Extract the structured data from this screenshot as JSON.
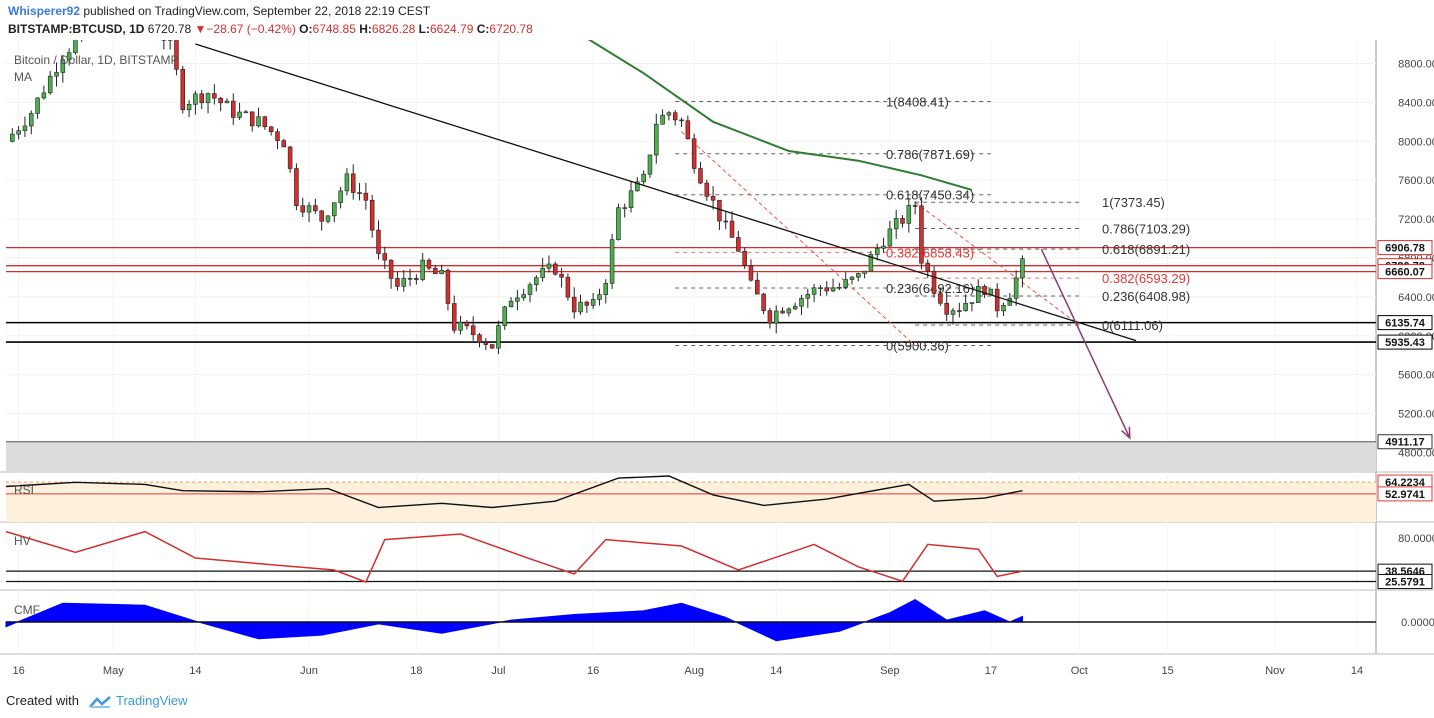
{
  "header": {
    "author": "Whisperer92",
    "published_text": "published on TradingView.com, September 22, 2018 22:19 CEST",
    "symbol": "BITSTAMP:BTCUSD, 1D",
    "last": "6720.78",
    "change": "−28.67 (−0.42%)",
    "open_label": "O:",
    "open": "6748.85",
    "high_label": "H:",
    "high": "6826.28",
    "low_label": "L:",
    "low": "6624.79",
    "close_label": "C:",
    "close": "6720.78"
  },
  "legend": {
    "title": "Bitcoin / Dollar, 1D, BITSTAMP",
    "ma": "MA",
    "rsi": "RSI",
    "hv": "HV",
    "cmf": "CMF"
  },
  "footer": {
    "created_with": "Created with",
    "brand": "TradingView"
  },
  "colors": {
    "up": "#4caf50",
    "down": "#d32f2f",
    "ma": "#2e7d32",
    "hline_red": "#e53935",
    "cmf_fill": "#0000ff",
    "arrow": "#8e3b72",
    "rsi_band": "#fdf0dd"
  },
  "chart_data": [
    {
      "type": "candlestick",
      "title": "Bitcoin / Dollar, 1D, BITSTAMP",
      "ylim": [
        4600,
        9000
      ],
      "y_ticks": [
        "8800.00",
        "8400.00",
        "8000.00",
        "7600.00",
        "7200.00",
        "6800.00",
        "6400.00",
        "6000.00",
        "5600.00",
        "5200.00",
        "4800.00"
      ],
      "x_ticks": [
        "16",
        "May",
        "14",
        "Jun",
        "18",
        "Jul",
        "16",
        "Aug",
        "14",
        "Sep",
        "17",
        "Oct",
        "15",
        "Nov",
        "14"
      ],
      "x_ticks_dates": [
        "2018-04-16",
        "2018-05-01",
        "2018-05-14",
        "2018-06-01",
        "2018-06-18",
        "2018-07-01",
        "2018-07-16",
        "2018-08-01",
        "2018-08-14",
        "2018-09-01",
        "2018-09-17",
        "2018-10-01",
        "2018-10-15",
        "2018-11-01",
        "2018-11-14"
      ],
      "x_range": [
        "2018-04-14",
        "2018-11-17"
      ],
      "close_path": [
        [
          "2018-04-14",
          8000
        ],
        [
          "2018-04-18",
          8300
        ],
        [
          "2018-04-23",
          8900
        ],
        [
          "2018-04-28",
          9200
        ],
        [
          "2018-05-02",
          9100
        ],
        [
          "2018-05-06",
          9300
        ],
        [
          "2018-05-10",
          9000
        ],
        [
          "2018-05-12",
          8400
        ],
        [
          "2018-05-16",
          8500
        ],
        [
          "2018-05-20",
          8300
        ],
        [
          "2018-05-24",
          8200
        ],
        [
          "2018-05-28",
          8000
        ],
        [
          "2018-05-30",
          7400
        ],
        [
          "2018-06-03",
          7200
        ],
        [
          "2018-06-07",
          7600
        ],
        [
          "2018-06-10",
          7400
        ],
        [
          "2018-06-12",
          6800
        ],
        [
          "2018-06-15",
          6500
        ],
        [
          "2018-06-19",
          6700
        ],
        [
          "2018-06-22",
          6600
        ],
        [
          "2018-06-24",
          6100
        ],
        [
          "2018-06-28",
          6000
        ],
        [
          "2018-06-30",
          5900
        ],
        [
          "2018-07-03",
          6400
        ],
        [
          "2018-07-07",
          6600
        ],
        [
          "2018-07-10",
          6700
        ],
        [
          "2018-07-13",
          6300
        ],
        [
          "2018-07-16",
          6300
        ],
        [
          "2018-07-18",
          6600
        ],
        [
          "2018-07-20",
          7300
        ],
        [
          "2018-07-24",
          7600
        ],
        [
          "2018-07-26",
          8200
        ],
        [
          "2018-07-28",
          8300
        ],
        [
          "2018-07-30",
          8200
        ],
        [
          "2018-08-01",
          7800
        ],
        [
          "2018-08-03",
          7500
        ],
        [
          "2018-08-06",
          7100
        ],
        [
          "2018-08-08",
          6900
        ],
        [
          "2018-08-10",
          6500
        ],
        [
          "2018-08-13",
          6200
        ],
        [
          "2018-08-15",
          6300
        ],
        [
          "2018-08-18",
          6400
        ],
        [
          "2018-08-21",
          6500
        ],
        [
          "2018-08-24",
          6500
        ],
        [
          "2018-08-27",
          6600
        ],
        [
          "2018-08-29",
          6800
        ],
        [
          "2018-08-31",
          7000
        ],
        [
          "2018-09-03",
          7200
        ],
        [
          "2018-09-05",
          7350
        ],
        [
          "2018-09-06",
          6800
        ],
        [
          "2018-09-08",
          6500
        ],
        [
          "2018-09-10",
          6300
        ],
        [
          "2018-09-12",
          6300
        ],
        [
          "2018-09-14",
          6400
        ],
        [
          "2018-09-16",
          6500
        ],
        [
          "2018-09-18",
          6300
        ],
        [
          "2018-09-20",
          6450
        ],
        [
          "2018-09-22",
          6720.78
        ]
      ],
      "ma_path": [
        [
          "2018-07-14",
          9100
        ],
        [
          "2018-07-24",
          8700
        ],
        [
          "2018-08-04",
          8200
        ],
        [
          "2018-08-16",
          7900
        ],
        [
          "2018-08-27",
          7800
        ],
        [
          "2018-09-06",
          7650
        ],
        [
          "2018-09-14",
          7500
        ]
      ],
      "price_labels": [
        {
          "value": 6906.78,
          "text": "6906.78",
          "color": "#d32f2f"
        },
        {
          "value": 6720.78,
          "text": "6720.78",
          "color": "#d32f2f"
        },
        {
          "value": 6660.07,
          "text": "6660.07",
          "color": "#d32f2f"
        },
        {
          "value": 6135.74,
          "text": "6135.74",
          "color": "#000000"
        },
        {
          "value": 5935.43,
          "text": "5935.43",
          "color": "#000000"
        },
        {
          "value": 4911.17,
          "text": "4911.17",
          "color": "#333333"
        }
      ],
      "fib_1": {
        "from": "2018-07-29",
        "to": "2018-09-17",
        "levels": [
          {
            "text": "1(8408.41)",
            "value": 8408.41
          },
          {
            "text": "0.786(7871.69)",
            "value": 7871.69
          },
          {
            "text": "0.618(7450.34)",
            "value": 7450.34
          },
          {
            "text": "0.382(6858.43)",
            "value": 6858.43
          },
          {
            "text": "0.236(6492.16)",
            "value": 6492.16
          },
          {
            "text": "0(5900.36)",
            "value": 5900.36
          }
        ]
      },
      "fib_2": {
        "from": "2018-09-05",
        "to": "2018-10-01",
        "levels": [
          {
            "text": "1(7373.45)",
            "value": 7373.45
          },
          {
            "text": "0.786(7103.29)",
            "value": 7103.29
          },
          {
            "text": "0.618(6891.21)",
            "value": 6891.21
          },
          {
            "text": "0.382(6593.29)",
            "value": 6593.29
          },
          {
            "text": "0.236(6408.98)",
            "value": 6408.98
          },
          {
            "text": "0(6111.06)",
            "value": 6111.06
          }
        ]
      },
      "trendline": [
        [
          "2018-05-14",
          9000
        ],
        [
          "2018-10-10",
          5950
        ]
      ],
      "projection_arrow": [
        [
          "2018-09-25",
          6890
        ],
        [
          "2018-10-09",
          4950
        ]
      ],
      "support_zone": [
        4550,
        4911.17
      ]
    },
    {
      "type": "line",
      "name": "RSI",
      "levels": [
        {
          "text": "64.2234",
          "value": 64.2234
        },
        {
          "text": "52.9741",
          "value": 52.9741
        }
      ],
      "ylim": [
        30,
        70
      ],
      "values_path": [
        [
          "2018-04-14",
          60
        ],
        [
          "2018-04-25",
          64
        ],
        [
          "2018-05-06",
          62
        ],
        [
          "2018-05-12",
          56
        ],
        [
          "2018-05-24",
          55
        ],
        [
          "2018-06-04",
          58
        ],
        [
          "2018-06-12",
          40
        ],
        [
          "2018-06-22",
          44
        ],
        [
          "2018-06-30",
          40
        ],
        [
          "2018-07-10",
          46
        ],
        [
          "2018-07-20",
          68
        ],
        [
          "2018-07-28",
          70
        ],
        [
          "2018-08-04",
          52
        ],
        [
          "2018-08-12",
          42
        ],
        [
          "2018-08-22",
          48
        ],
        [
          "2018-09-04",
          62
        ],
        [
          "2018-09-08",
          46
        ],
        [
          "2018-09-16",
          49
        ],
        [
          "2018-09-22",
          56
        ]
      ]
    },
    {
      "type": "line",
      "name": "HV",
      "ticks": [
        {
          "text": "80.0000",
          "value": 80
        }
      ],
      "levels": [
        {
          "text": "38.5646",
          "value": 38.5646
        },
        {
          "text": "25.5791",
          "value": 25.5791
        }
      ],
      "ylim": [
        20,
        95
      ],
      "values_path": [
        [
          "2018-04-14",
          88
        ],
        [
          "2018-04-25",
          62
        ],
        [
          "2018-05-06",
          88
        ],
        [
          "2018-05-14",
          55
        ],
        [
          "2018-05-24",
          48
        ],
        [
          "2018-06-05",
          40
        ],
        [
          "2018-06-10",
          25
        ],
        [
          "2018-06-13",
          78
        ],
        [
          "2018-06-25",
          85
        ],
        [
          "2018-07-06",
          54
        ],
        [
          "2018-07-13",
          35
        ],
        [
          "2018-07-18",
          78
        ],
        [
          "2018-07-30",
          70
        ],
        [
          "2018-08-08",
          40
        ],
        [
          "2018-08-20",
          72
        ],
        [
          "2018-08-27",
          44
        ],
        [
          "2018-09-03",
          26
        ],
        [
          "2018-09-07",
          72
        ],
        [
          "2018-09-15",
          66
        ],
        [
          "2018-09-18",
          32
        ],
        [
          "2018-09-22",
          38.5646
        ]
      ]
    },
    {
      "type": "area",
      "name": "CMF",
      "ticks": [
        {
          "text": "0.0000",
          "value": 0
        }
      ],
      "ylim": [
        -0.3,
        0.3
      ],
      "values_path": [
        [
          "2018-04-14",
          -0.05
        ],
        [
          "2018-04-23",
          0.2
        ],
        [
          "2018-05-06",
          0.18
        ],
        [
          "2018-05-14",
          0.01
        ],
        [
          "2018-05-24",
          -0.18
        ],
        [
          "2018-06-03",
          -0.14
        ],
        [
          "2018-06-12",
          -0.02
        ],
        [
          "2018-06-22",
          -0.12
        ],
        [
          "2018-07-03",
          0.02
        ],
        [
          "2018-07-13",
          0.08
        ],
        [
          "2018-07-24",
          0.12
        ],
        [
          "2018-07-30",
          0.2
        ],
        [
          "2018-08-06",
          0.05
        ],
        [
          "2018-08-14",
          -0.2
        ],
        [
          "2018-08-24",
          -0.1
        ],
        [
          "2018-09-01",
          0.1
        ],
        [
          "2018-09-05",
          0.24
        ],
        [
          "2018-09-10",
          0.02
        ],
        [
          "2018-09-16",
          0.12
        ],
        [
          "2018-09-20",
          0.0
        ],
        [
          "2018-09-22",
          0.06
        ]
      ]
    }
  ]
}
